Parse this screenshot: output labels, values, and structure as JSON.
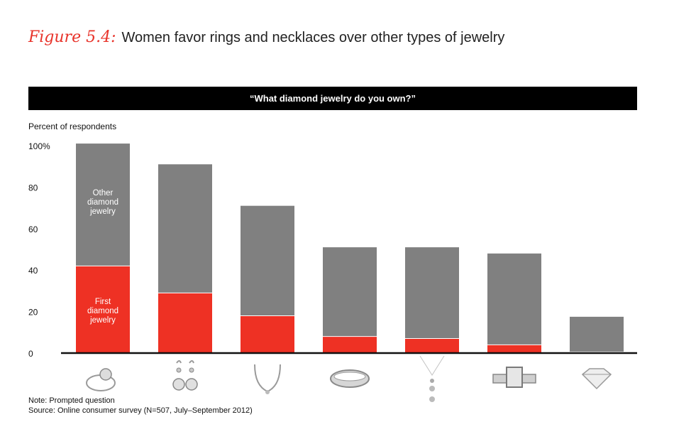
{
  "figure": {
    "label": "Figure 5.4:",
    "title": "Women favor rings and necklaces over other types of jewelry"
  },
  "banner": "“What diamond jewelry do you own?”",
  "notes": {
    "note": "Note: Prompted question",
    "source": "Source: Online consumer survey (N=507, July–September 2012)"
  },
  "colors": {
    "other": "#808080",
    "first": "#ee3124",
    "axis": "#111111"
  },
  "chart_data": {
    "type": "bar",
    "stacked": true,
    "ylabel": "Percent of respondents",
    "ylim": [
      0,
      100
    ],
    "yticks": [
      {
        "value": 0,
        "label": "0"
      },
      {
        "value": 20,
        "label": "20"
      },
      {
        "value": 40,
        "label": "40"
      },
      {
        "value": 60,
        "label": "60"
      },
      {
        "value": 80,
        "label": "80"
      },
      {
        "value": 100,
        "label": "100%"
      }
    ],
    "categories": [
      "ring-icon",
      "earrings-icon",
      "necklace-icon",
      "band-icon",
      "pendant-icon",
      "watch-icon",
      "loose-diamond-icon"
    ],
    "series": [
      {
        "name": "First diamond jewelry",
        "values": [
          42,
          29,
          18,
          8,
          7,
          4,
          0.5
        ]
      },
      {
        "name": "Other diamond jewelry",
        "values": [
          59,
          62,
          53,
          43,
          44,
          44,
          17
        ]
      }
    ],
    "series_labels": {
      "first": [
        "First",
        "diamond",
        "jewelry"
      ],
      "other": [
        "Other",
        "diamond",
        "jewelry"
      ]
    }
  }
}
